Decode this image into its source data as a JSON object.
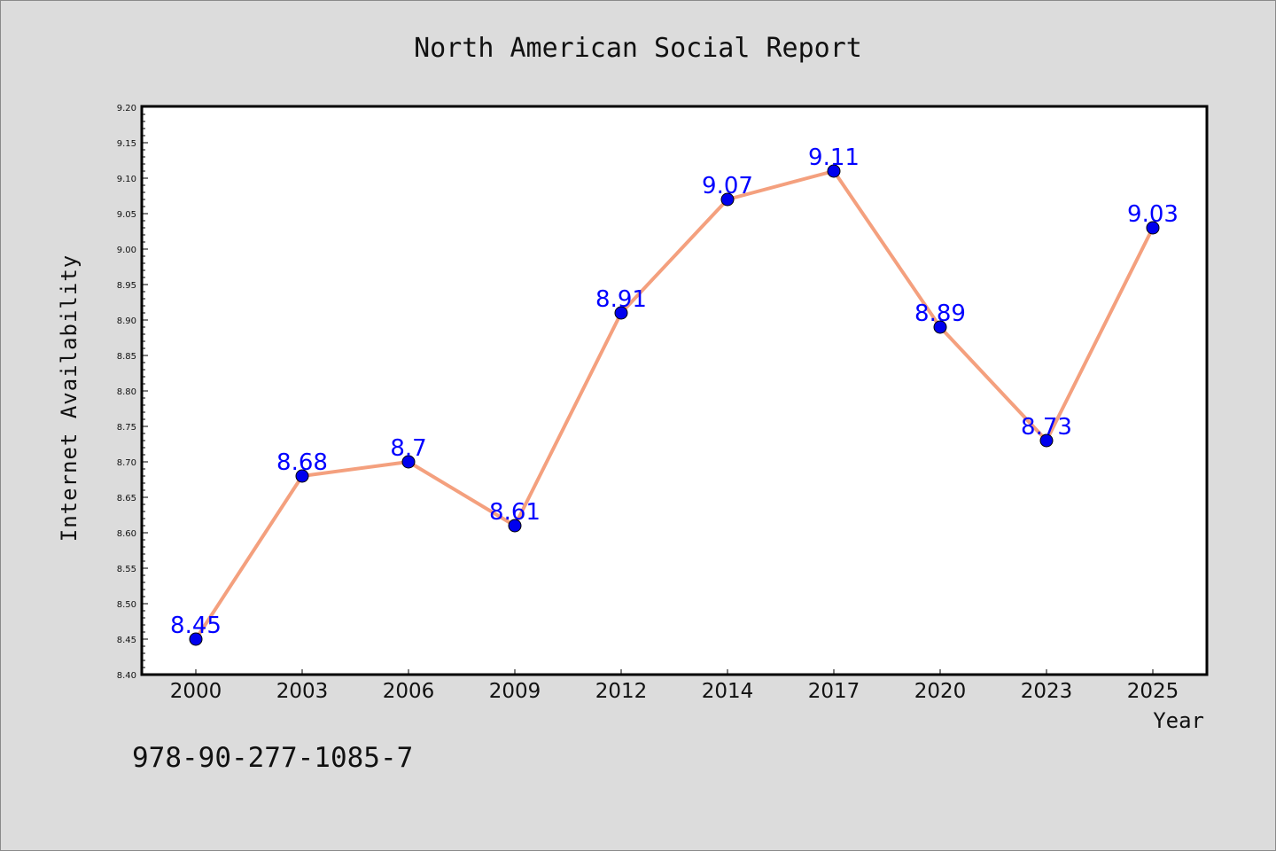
{
  "chart_data": {
    "type": "line",
    "title": "North American Social Report",
    "xlabel": "Year",
    "ylabel": "Internet Availability",
    "categories": [
      "2000",
      "2003",
      "2006",
      "2009",
      "2012",
      "2014",
      "2017",
      "2020",
      "2023",
      "2025"
    ],
    "series": [
      {
        "values": [
          8.45,
          8.68,
          8.7,
          8.61,
          8.91,
          9.07,
          9.11,
          8.89,
          8.73,
          9.03
        ],
        "data_labels": [
          "8.45",
          "8.68",
          "8.7",
          "8.61",
          "8.91",
          "9.07",
          "9.11",
          "8.89",
          "8.73",
          "9.03"
        ]
      }
    ],
    "ylim": [
      8.4,
      9.2
    ],
    "yticks": [
      "8.40",
      "8.45",
      "8.50",
      "8.55",
      "8.60",
      "8.65",
      "8.70",
      "8.75",
      "8.80",
      "8.85",
      "8.90",
      "8.95",
      "9.00",
      "9.05",
      "9.10",
      "9.15",
      "9.20"
    ],
    "grid": false,
    "line_color": "#f4a07e",
    "marker_color": "#0000ee",
    "label_color": "#0000ff"
  },
  "footer": {
    "isbn": "978-90-277-1085-7"
  }
}
